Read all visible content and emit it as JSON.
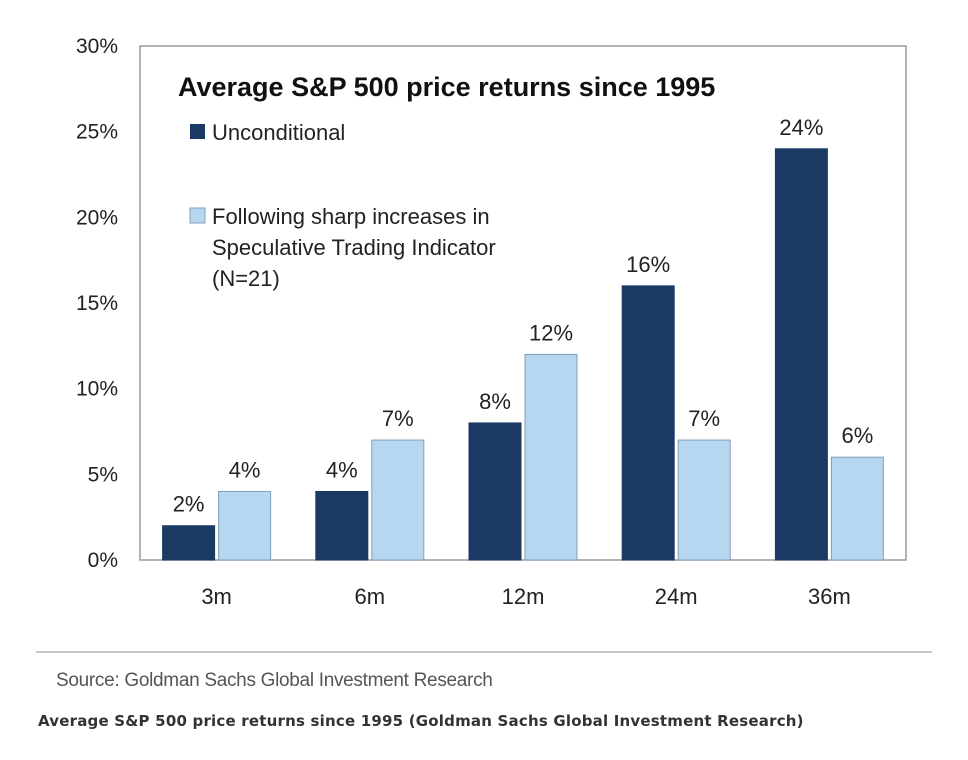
{
  "colors": {
    "dark": "#1b3a63",
    "light": "#b7d7f0",
    "light_stroke": "#7f9fbc",
    "axis": "#9a9a9a"
  },
  "chart_data": {
    "type": "bar",
    "title": "Average S&P 500 price returns since 1995",
    "categories": [
      "3m",
      "6m",
      "12m",
      "24m",
      "36m"
    ],
    "series": [
      {
        "name": "Unconditional",
        "values": [
          2,
          4,
          8,
          16,
          24
        ],
        "labels": [
          "2%",
          "4%",
          "8%",
          "16%",
          "24%"
        ]
      },
      {
        "name": "Following sharp increases in Speculative Trading Indicator (N=21)",
        "legend_lines": [
          "Following sharp increases in",
          "Speculative Trading Indicator",
          "(N=21)"
        ],
        "values": [
          4,
          7,
          12,
          7,
          6
        ],
        "labels": [
          "4%",
          "7%",
          "12%",
          "7%",
          "6%"
        ]
      }
    ],
    "ylim": [
      0,
      30
    ],
    "yticks": [
      "0%",
      "5%",
      "10%",
      "15%",
      "20%",
      "25%",
      "30%"
    ],
    "ytick_values": [
      0,
      5,
      10,
      15,
      20,
      25,
      30
    ],
    "xlabel": "",
    "ylabel": ""
  },
  "source": "Source: Goldman Sachs Global Investment Research",
  "caption": "Average S&P 500 price returns since 1995 (Goldman Sachs Global Investment Research)"
}
